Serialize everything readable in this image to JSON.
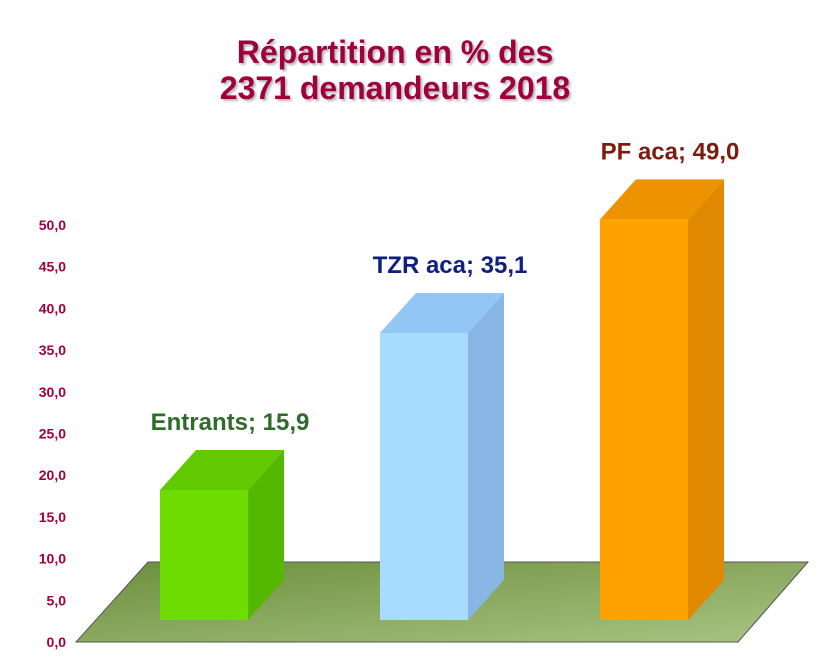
{
  "chart_data": {
    "type": "bar",
    "title_lines": [
      "Répartition en % des",
      "2371 demandeurs 2018"
    ],
    "categories": [
      "Entrants",
      "TZR aca",
      "PF aca"
    ],
    "values": [
      15.9,
      35.1,
      49.0
    ],
    "data_labels": [
      "Entrants; 15,9",
      "TZR aca; 35,1",
      "PF aca; 49,0"
    ],
    "y_ticks": [
      "0,0",
      "5,0",
      "10,0",
      "15,0",
      "20,0",
      "25,0",
      "30,0",
      "35,0",
      "40,0",
      "45,0",
      "50,0"
    ],
    "ylim": [
      0,
      50
    ],
    "xlabel": "",
    "ylabel": "",
    "grid": false,
    "legend": "none",
    "colors": {
      "bars_front": [
        "#6fdc00",
        "#a8dcff",
        "#ffa200"
      ],
      "bars_side": [
        "#55b800",
        "#88b6e4",
        "#e08800"
      ],
      "bars_top": [
        "#62c800",
        "#92c6f4",
        "#ee9300"
      ],
      "labels": [
        "#2f6c2a",
        "#0e1f80",
        "#7a1c0e"
      ],
      "ticks": "#a0003c",
      "title": "#a0003c",
      "floor_light": "#a9c484",
      "floor_dark": "#6c8e3c"
    }
  }
}
